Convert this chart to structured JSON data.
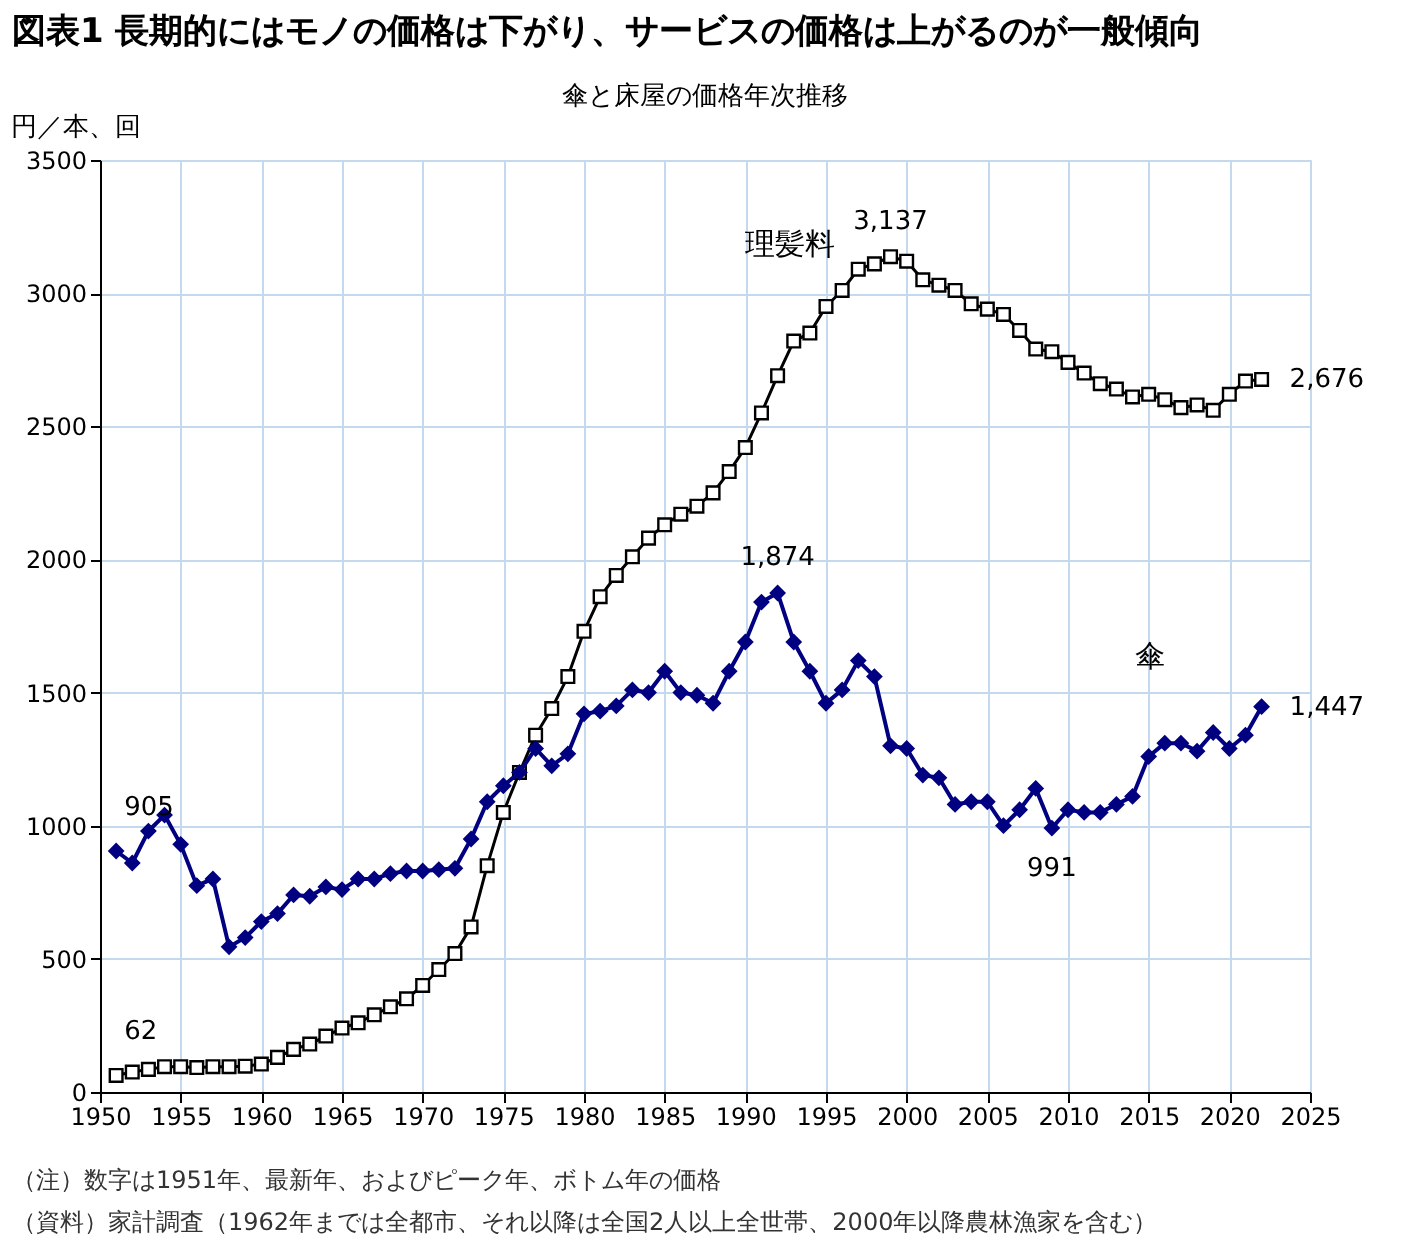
{
  "chart_data": {
    "type": "line",
    "title": "図表1 長期的にはモノの価格は下がり、サービスの価格は上がるのが一般傾向",
    "subtitle": "傘と床屋の価格年次推移",
    "ylabel": "円／本、回",
    "x": [
      1951,
      1952,
      1953,
      1954,
      1955,
      1956,
      1957,
      1958,
      1959,
      1960,
      1961,
      1962,
      1963,
      1964,
      1965,
      1966,
      1967,
      1968,
      1969,
      1970,
      1971,
      1972,
      1973,
      1974,
      1975,
      1976,
      1977,
      1978,
      1979,
      1980,
      1981,
      1982,
      1983,
      1984,
      1985,
      1986,
      1987,
      1988,
      1989,
      1990,
      1991,
      1992,
      1993,
      1994,
      1995,
      1996,
      1997,
      1998,
      1999,
      2000,
      2001,
      2002,
      2003,
      2004,
      2005,
      2006,
      2007,
      2008,
      2009,
      2010,
      2011,
      2012,
      2013,
      2014,
      2015,
      2016,
      2017,
      2018,
      2019,
      2020,
      2021,
      2022
    ],
    "series": [
      {
        "name": "理髪料",
        "color": "#000000",
        "marker": "square",
        "values": [
          62,
          75,
          85,
          95,
          95,
          92,
          95,
          95,
          97,
          105,
          130,
          160,
          180,
          210,
          240,
          260,
          290,
          320,
          350,
          400,
          460,
          520,
          620,
          850,
          1050,
          1200,
          1340,
          1440,
          1560,
          1730,
          1860,
          1940,
          2010,
          2080,
          2130,
          2170,
          2200,
          2250,
          2330,
          2420,
          2550,
          2690,
          2820,
          2850,
          2950,
          3010,
          3090,
          3110,
          3137,
          3120,
          3050,
          3030,
          3010,
          2960,
          2940,
          2920,
          2860,
          2790,
          2780,
          2740,
          2700,
          2660,
          2640,
          2610,
          2620,
          2600,
          2570,
          2580,
          2560,
          2620,
          2670,
          2676
        ]
      },
      {
        "name": "傘",
        "color": "#000080",
        "marker": "diamond",
        "values": [
          905,
          860,
          980,
          1040,
          930,
          775,
          800,
          545,
          580,
          640,
          670,
          740,
          735,
          770,
          760,
          800,
          800,
          820,
          830,
          830,
          835,
          840,
          950,
          1090,
          1150,
          1200,
          1290,
          1225,
          1270,
          1420,
          1430,
          1450,
          1510,
          1500,
          1580,
          1500,
          1490,
          1460,
          1580,
          1690,
          1840,
          1874,
          1690,
          1580,
          1460,
          1510,
          1620,
          1560,
          1300,
          1290,
          1190,
          1180,
          1080,
          1090,
          1090,
          1000,
          1060,
          1140,
          991,
          1060,
          1050,
          1050,
          1080,
          1110,
          1260,
          1310,
          1310,
          1280,
          1350,
          1290,
          1340,
          1447
        ]
      }
    ],
    "xlim": [
      1950,
      2025
    ],
    "xticks": [
      1950,
      1955,
      1960,
      1965,
      1970,
      1975,
      1980,
      1985,
      1990,
      1995,
      2000,
      2005,
      2010,
      2015,
      2020,
      2025
    ],
    "ylim": [
      0,
      3500
    ],
    "yticks": [
      0,
      500,
      1000,
      1500,
      2000,
      2500,
      3000,
      3500
    ],
    "grid": true,
    "annotations": [
      {
        "text": "905",
        "x": 1951,
        "y": 905
      },
      {
        "text": "62",
        "x": 1951,
        "y": 62
      },
      {
        "text": "3,137",
        "x": 1999,
        "y": 3137
      },
      {
        "text": "1,874",
        "x": 1992,
        "y": 1874
      },
      {
        "text": "991",
        "x": 2009,
        "y": 991
      },
      {
        "text": "2,676",
        "x": 2022,
        "y": 2676
      },
      {
        "text": "1,447",
        "x": 2022,
        "y": 1447
      },
      "（注）数字は1951年、最新年、およびピーク年、ボトム年の価格",
      "（資料）家計調査（1962年までは全都市、それ以降は全国2人以上全世帯、2000年以降農林漁家を含む）"
    ]
  }
}
